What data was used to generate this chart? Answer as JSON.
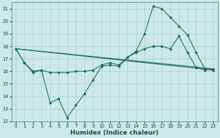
{
  "xlabel": "Humidex (Indice chaleur)",
  "bg_color": "#cde8e8",
  "grid_color": "#aacccc",
  "line_color": "#1a6b6b",
  "xlim": [
    -0.5,
    23.5
  ],
  "ylim": [
    12,
    21.5
  ],
  "yticks": [
    12,
    13,
    14,
    15,
    16,
    17,
    18,
    19,
    20,
    21
  ],
  "xticks": [
    0,
    1,
    2,
    3,
    4,
    5,
    6,
    7,
    8,
    9,
    10,
    11,
    12,
    13,
    14,
    15,
    16,
    17,
    18,
    19,
    20,
    21,
    22,
    23
  ],
  "line1_x": [
    0,
    1,
    2,
    3,
    4,
    5,
    6,
    7,
    8,
    9,
    10,
    11,
    12,
    13,
    14,
    15,
    16,
    17,
    18,
    19,
    20,
    21,
    22,
    23
  ],
  "line1_y": [
    17.8,
    16.7,
    15.9,
    16.1,
    13.5,
    13.8,
    12.3,
    13.3,
    14.2,
    15.3,
    16.4,
    16.5,
    16.4,
    17.1,
    17.5,
    17.8,
    18.0,
    18.0,
    17.8,
    18.8,
    17.5,
    16.3,
    16.1,
    16.2
  ],
  "line2_x": [
    0,
    23
  ],
  "line2_y": [
    17.8,
    16.2
  ],
  "line3_x": [
    0,
    1,
    2,
    3,
    4,
    5,
    6,
    7,
    8,
    9,
    10,
    11,
    12,
    13,
    14,
    15,
    16,
    17,
    18,
    19,
    20,
    21,
    22,
    23
  ],
  "line3_y": [
    17.8,
    16.7,
    16.0,
    16.1,
    15.9,
    15.9,
    15.9,
    16.0,
    16.0,
    16.1,
    16.5,
    16.7,
    16.5,
    17.1,
    17.6,
    19.0,
    21.2,
    21.0,
    20.3,
    19.6,
    18.9,
    17.5,
    16.2,
    16.1
  ],
  "line4_x": [
    0,
    23
  ],
  "line4_y": [
    17.8,
    16.1
  ]
}
